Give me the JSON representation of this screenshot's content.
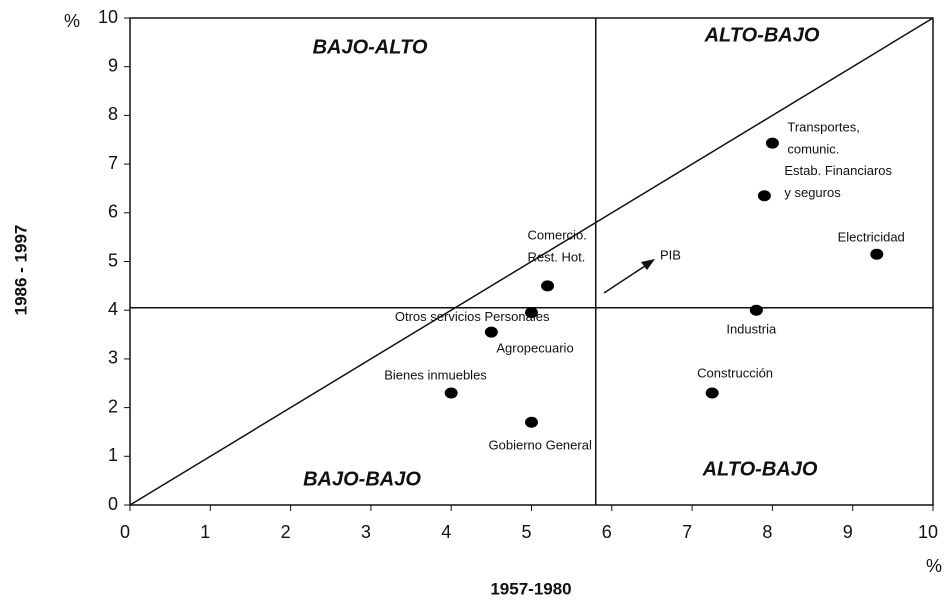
{
  "chart_data": {
    "type": "scatter",
    "x_label": "1957-1980",
    "y_label": "1986 - 1997",
    "x_unit": "%",
    "y_unit": "%",
    "xlim": [
      0,
      10
    ],
    "ylim": [
      0,
      10
    ],
    "xticks": [
      0,
      1,
      2,
      3,
      4,
      5,
      6,
      7,
      8,
      9,
      10
    ],
    "yticks": [
      0,
      1,
      2,
      3,
      4,
      5,
      6,
      7,
      8,
      9,
      10
    ],
    "reference_x": 5.8,
    "reference_y": 4.05,
    "diagonal": true,
    "quadrant_labels": [
      "BAJO-ALTO",
      "ALTO-BAJO",
      "BAJO-BAJO",
      "ALTO-BAJO"
    ],
    "x": [
      8.0,
      7.9,
      9.3,
      7.8,
      7.25,
      5.2,
      5.0,
      4.5,
      4.0,
      5.0
    ],
    "values": [
      7.43,
      6.35,
      5.15,
      4.0,
      2.3,
      4.5,
      3.95,
      3.55,
      2.3,
      1.7
    ],
    "labels": [
      [
        "Transportes,",
        "comunic."
      ],
      [
        "Estab. Financiaros",
        "y seguros"
      ],
      [
        "Electricidad"
      ],
      [
        "Industria"
      ],
      [
        "Construcción"
      ],
      [
        "Comercio.",
        "Rest. Hot."
      ],
      [
        "Otros servicios Personales"
      ],
      [
        "Agropecuario"
      ],
      [
        "Bienes inmuebles"
      ],
      [
        "Gobierno General"
      ]
    ],
    "arrow_label": "PIB",
    "color": "#000000"
  }
}
